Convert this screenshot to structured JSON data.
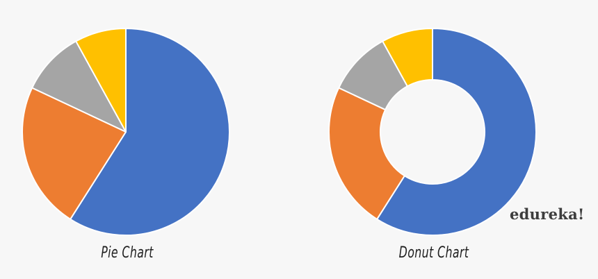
{
  "colors": {
    "background": "#f7f7f7",
    "slice_stroke": "#ffffff",
    "hole": "#f7f7f7"
  },
  "brand": {
    "logo_text": "edureka!"
  },
  "chart_data": [
    {
      "type": "pie",
      "title": "Pie Chart",
      "legend": "none",
      "grid": false,
      "slices": [
        {
          "value": 59,
          "color": "#4472c4"
        },
        {
          "value": 23,
          "color": "#ed7d31"
        },
        {
          "value": 10,
          "color": "#a5a5a5"
        },
        {
          "value": 8,
          "color": "#ffc000"
        }
      ]
    },
    {
      "type": "pie",
      "variant": "donut",
      "title": "Donut Chart",
      "legend": "none",
      "grid": false,
      "slices": [
        {
          "value": 59,
          "color": "#4472c4"
        },
        {
          "value": 23,
          "color": "#ed7d31"
        },
        {
          "value": 10,
          "color": "#a5a5a5"
        },
        {
          "value": 8,
          "color": "#ffc000"
        }
      ]
    }
  ]
}
